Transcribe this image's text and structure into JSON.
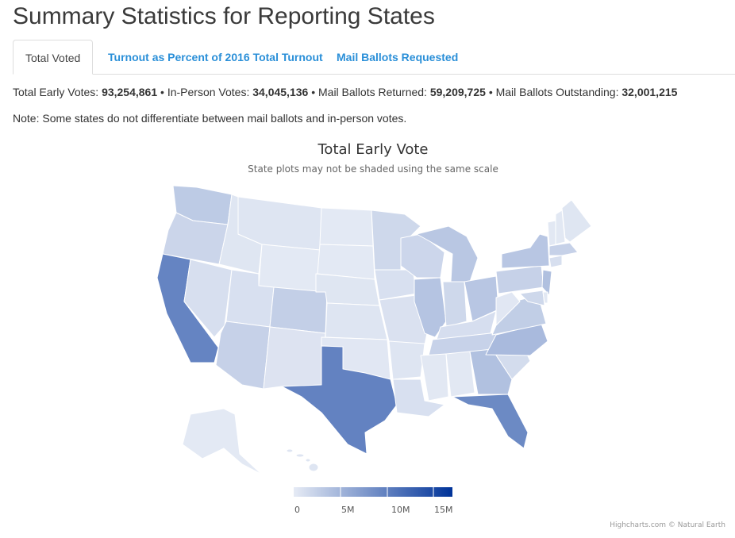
{
  "page": {
    "title": "Summary Statistics for Reporting States"
  },
  "tabs": [
    {
      "label": "Total Voted",
      "active": true
    },
    {
      "label": "Turnout as Percent of 2016 Total Turnout",
      "active": false
    },
    {
      "label": "Mail Ballots Requested",
      "active": false
    }
  ],
  "stats": {
    "early_label": "Total Early Votes:",
    "early_value": "93,254,861",
    "inperson_label": "In-Person Votes:",
    "inperson_value": "34,045,136",
    "returned_label": "Mail Ballots Returned:",
    "returned_value": "59,209,725",
    "outstanding_label": "Mail Ballots Outstanding:",
    "outstanding_value": "32,001,215",
    "separator": "•"
  },
  "note": "Note: Some states do not differentiate between mail ballots and in-person votes.",
  "map": {
    "title": "Total Early Vote",
    "subtitle": "State plots may not be shaded using the same scale",
    "color_min": "#e6ebf5",
    "color_max": "#003399",
    "value_max_millions": 17,
    "legend_ticks": [
      "0",
      "5M",
      "10M",
      "15M"
    ],
    "credits": "Highcharts.com © Natural Earth"
  },
  "chart_data": {
    "type": "choropleth",
    "unit": "millions of early votes (approximate, read from shading)",
    "states": [
      {
        "id": "WA",
        "value": 3.0
      },
      {
        "id": "OR",
        "value": 2.0
      },
      {
        "id": "CA",
        "value": 9.5
      },
      {
        "id": "ID",
        "value": 0.5
      },
      {
        "id": "NV",
        "value": 1.1
      },
      {
        "id": "MT",
        "value": 0.6
      },
      {
        "id": "WY",
        "value": 0.2
      },
      {
        "id": "UT",
        "value": 1.0
      },
      {
        "id": "AZ",
        "value": 2.4
      },
      {
        "id": "CO",
        "value": 2.6
      },
      {
        "id": "NM",
        "value": 0.7
      },
      {
        "id": "ND",
        "value": 0.2
      },
      {
        "id": "SD",
        "value": 0.2
      },
      {
        "id": "NE",
        "value": 0.5
      },
      {
        "id": "KS",
        "value": 0.6
      },
      {
        "id": "OK",
        "value": 0.4
      },
      {
        "id": "TX",
        "value": 9.7
      },
      {
        "id": "MN",
        "value": 1.8
      },
      {
        "id": "IA",
        "value": 1.0
      },
      {
        "id": "MO",
        "value": 0.9
      },
      {
        "id": "AR",
        "value": 0.6
      },
      {
        "id": "LA",
        "value": 1.0
      },
      {
        "id": "WI",
        "value": 1.9
      },
      {
        "id": "IL",
        "value": 3.6
      },
      {
        "id": "MI",
        "value": 3.3
      },
      {
        "id": "IN",
        "value": 1.8
      },
      {
        "id": "OH",
        "value": 3.4
      },
      {
        "id": "KY",
        "value": 1.2
      },
      {
        "id": "TN",
        "value": 2.3
      },
      {
        "id": "MS",
        "value": 0.3
      },
      {
        "id": "AL",
        "value": 0.3
      },
      {
        "id": "GA",
        "value": 3.9
      },
      {
        "id": "FL",
        "value": 9.0
      },
      {
        "id": "SC",
        "value": 1.4
      },
      {
        "id": "NC",
        "value": 4.5
      },
      {
        "id": "VA",
        "value": 2.7
      },
      {
        "id": "WV",
        "value": 0.4
      },
      {
        "id": "PA",
        "value": 2.4
      },
      {
        "id": "NY",
        "value": 3.4
      },
      {
        "id": "NJ",
        "value": 4.0
      },
      {
        "id": "MD",
        "value": 1.8
      },
      {
        "id": "DE",
        "value": 0.3
      },
      {
        "id": "CT",
        "value": 1.1
      },
      {
        "id": "MA",
        "value": 2.4
      },
      {
        "id": "VT",
        "value": 0.3
      },
      {
        "id": "NH",
        "value": 0.3
      },
      {
        "id": "ME",
        "value": 0.5
      },
      {
        "id": "AK",
        "value": 0.2
      },
      {
        "id": "HI",
        "value": 0.6
      }
    ]
  }
}
